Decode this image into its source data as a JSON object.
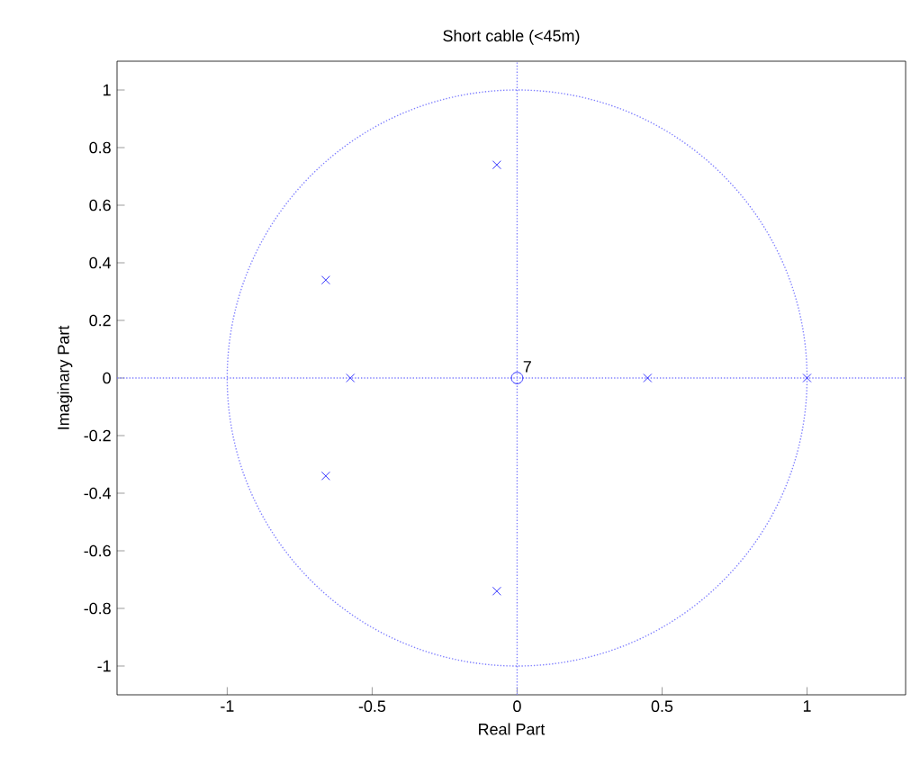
{
  "chart_data": {
    "type": "scatter",
    "title": "Short cable (<45m)",
    "xlabel": "Real Part",
    "ylabel": "Imaginary Part",
    "xlim": [
      -1.38,
      1.34
    ],
    "ylim": [
      -1.1,
      1.1
    ],
    "xticks": [
      -1,
      -0.5,
      0,
      0.5,
      1
    ],
    "yticks": [
      -1,
      -0.8,
      -0.6,
      -0.4,
      -0.2,
      0,
      0.2,
      0.4,
      0.6,
      0.8,
      1
    ],
    "series": [
      {
        "type": "scatter",
        "marker": "cross",
        "color": "#0000ff",
        "x": [
          -0.07,
          -0.07,
          -0.66,
          -0.66,
          -0.575,
          0.45,
          1
        ],
        "values": [
          0.74,
          -0.74,
          0.34,
          -0.34,
          0,
          0,
          0
        ]
      },
      {
        "type": "scatter",
        "marker": "circle",
        "color": "#0000ff",
        "x": [
          0
        ],
        "values": [
          0
        ]
      }
    ],
    "annotations": [
      {
        "text": "7",
        "x": 0,
        "y": 0
      }
    ]
  }
}
